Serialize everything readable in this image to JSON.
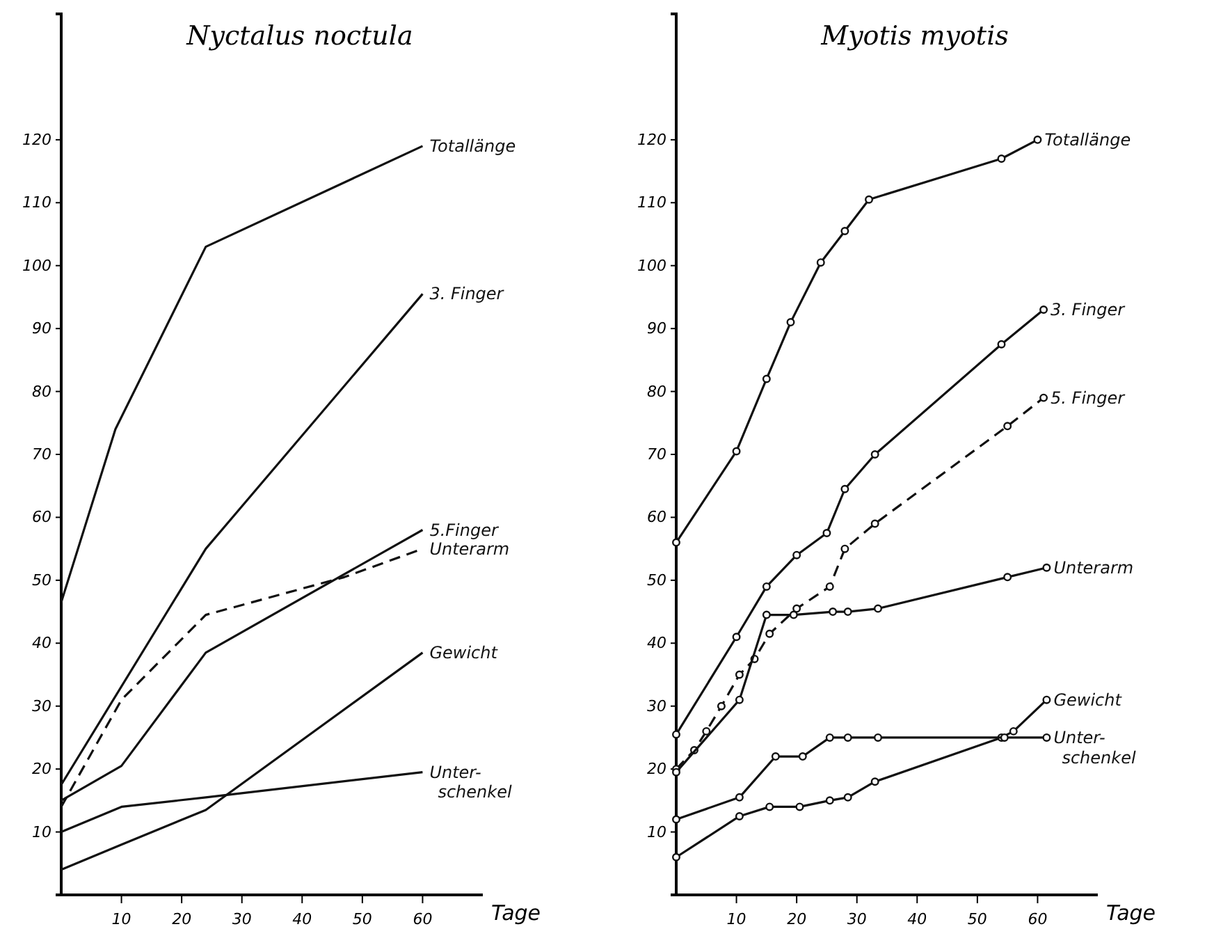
{
  "chart_data": [
    {
      "type": "line",
      "title": "Nyctalus noctula",
      "xlabel": "Tage",
      "xlim": [
        0,
        70
      ],
      "ylim": [
        0,
        140
      ],
      "xticks": [
        10,
        20,
        30,
        40,
        50,
        60
      ],
      "yticks": [
        10,
        20,
        30,
        40,
        50,
        60,
        70,
        80,
        90,
        100,
        110,
        120
      ],
      "grid": false,
      "legend": false,
      "marker": "none",
      "series": [
        {
          "name": "Totallänge",
          "color": "#111111",
          "x": [
            0,
            9,
            24,
            60
          ],
          "values": [
            46.5,
            74,
            103,
            119
          ]
        },
        {
          "name": "3. Finger",
          "color": "#111111",
          "x": [
            0,
            24,
            60
          ],
          "values": [
            17.5,
            55,
            95.5
          ]
        },
        {
          "name": "5.Finger",
          "color": "#111111",
          "x": [
            0,
            10,
            24,
            60
          ],
          "values": [
            15,
            20.5,
            38.5,
            58
          ]
        },
        {
          "name": "Unterarm",
          "color": "#111111",
          "line_style": "dashed",
          "x": [
            0,
            10,
            24,
            47,
            60
          ],
          "values": [
            14,
            31,
            44.5,
            50.5,
            55
          ]
        },
        {
          "name": "Gewicht",
          "color": "#111111",
          "x": [
            0,
            10,
            24,
            60
          ],
          "values": [
            4,
            8,
            13.5,
            38.5
          ]
        },
        {
          "name": "Unter-\nschenkel",
          "color": "#111111",
          "x": [
            0,
            10,
            24,
            60
          ],
          "values": [
            10,
            14,
            15.5,
            19.5
          ]
        }
      ]
    },
    {
      "type": "line",
      "title": "Myotis myotis",
      "xlabel": "Tage",
      "xlim": [
        0,
        70
      ],
      "ylim": [
        0,
        140
      ],
      "xticks": [
        10,
        20,
        30,
        40,
        50,
        60
      ],
      "yticks": [
        10,
        20,
        30,
        40,
        50,
        60,
        70,
        80,
        90,
        100,
        110,
        120
      ],
      "grid": false,
      "legend": false,
      "marker": "circle",
      "series": [
        {
          "name": "Totallänge",
          "color": "#111111",
          "x": [
            0,
            10,
            15,
            19,
            24,
            28,
            32,
            54,
            60
          ],
          "values": [
            56,
            70.5,
            82,
            91,
            100.5,
            105.5,
            110.5,
            117,
            120
          ]
        },
        {
          "name": "3. Finger",
          "color": "#111111",
          "x": [
            0,
            10,
            15,
            20,
            25,
            28,
            33,
            54,
            61
          ],
          "values": [
            25.5,
            41,
            49,
            54,
            57.5,
            64.5,
            70,
            87.5,
            93
          ]
        },
        {
          "name": "5. Finger",
          "color": "#111111",
          "line_style": "dashed",
          "x": [
            0,
            3,
            5,
            7.5,
            10.5,
            13,
            15.5,
            20,
            25.5,
            28,
            33,
            55,
            61
          ],
          "values": [
            20,
            23,
            26,
            30,
            35,
            37.5,
            41.5,
            45.5,
            49,
            55,
            59,
            74.5,
            79
          ]
        },
        {
          "name": "Unterarm",
          "color": "#111111",
          "x": [
            0,
            10.5,
            15,
            19.5,
            26,
            28.5,
            33.5,
            55,
            61.5
          ],
          "values": [
            19.5,
            31,
            44.5,
            44.5,
            45,
            45,
            45.5,
            50.5,
            52
          ]
        },
        {
          "name": "Gewicht",
          "color": "#111111",
          "x": [
            0,
            10.5,
            15.5,
            20.5,
            25.5,
            28.5,
            33,
            54,
            56,
            61.5
          ],
          "values": [
            6,
            12.5,
            14,
            14,
            15,
            15.5,
            18,
            25,
            26,
            31
          ]
        },
        {
          "name": "Unter-\nschenkel",
          "color": "#111111",
          "x": [
            0,
            10.5,
            16.5,
            21,
            25.5,
            28.5,
            33.5,
            54.5,
            61.5
          ],
          "values": [
            12,
            15.5,
            22,
            22,
            25,
            25,
            25,
            25,
            25
          ]
        }
      ]
    }
  ]
}
